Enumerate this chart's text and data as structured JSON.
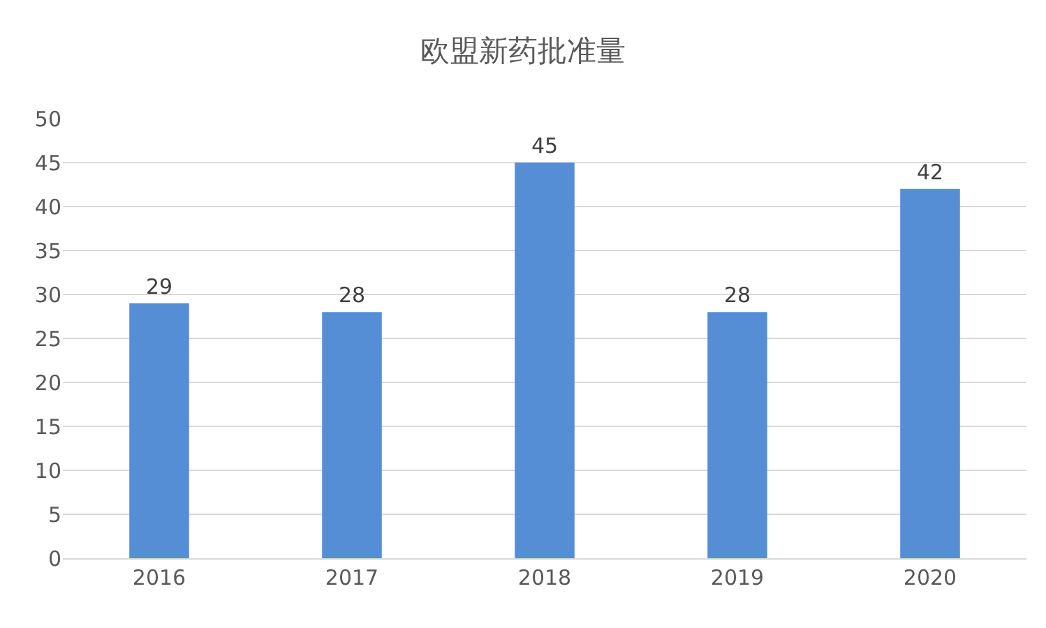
{
  "chart_data": {
    "type": "bar",
    "title": "欧盟新药批准量",
    "categories": [
      "2016",
      "2017",
      "2018",
      "2019",
      "2020"
    ],
    "values": [
      29,
      28,
      45,
      28,
      42
    ],
    "color": "#558ed5",
    "ylim": [
      0,
      50
    ],
    "yticks": [
      0,
      5,
      10,
      15,
      20,
      25,
      30,
      35,
      40,
      45,
      50
    ],
    "grid": "y",
    "data_labels": true
  }
}
